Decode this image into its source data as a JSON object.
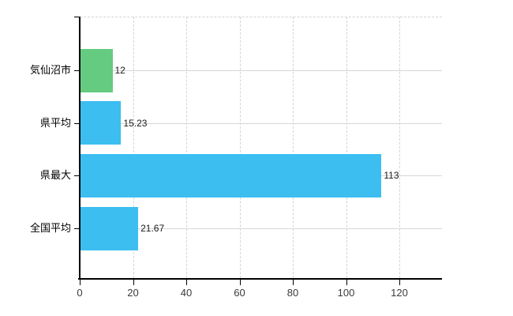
{
  "chart_data": {
    "type": "bar",
    "orientation": "horizontal",
    "title": "",
    "categories": [
      "気仙沼市",
      "県平均",
      "県最大",
      "全国平均"
    ],
    "values": [
      12,
      15.23,
      113,
      21.67
    ],
    "value_labels": [
      "12",
      "15.23",
      "113",
      "21.67"
    ],
    "bar_colors": [
      "#65CB80",
      "#3CBEF0",
      "#3CBEF0",
      "#3CBEF0"
    ],
    "x_ticks": [
      0,
      20,
      40,
      60,
      80,
      100,
      120
    ],
    "x_tick_labels": [
      "0",
      "20",
      "40",
      "60",
      "80",
      "100",
      "120"
    ],
    "xlim": [
      0,
      136
    ],
    "grid": "vertical dashed + horizontal solid at category rows",
    "legend": "none"
  },
  "colors": {
    "background": "#ffffff",
    "bar_blue": "#3CBEF0",
    "bar_green": "#65CB80",
    "gridline": "#d4d4d4",
    "axis": "#000000",
    "value_text": "#1a1a1a",
    "category_text": "#000000",
    "tick_text": "#3a3a3a"
  }
}
